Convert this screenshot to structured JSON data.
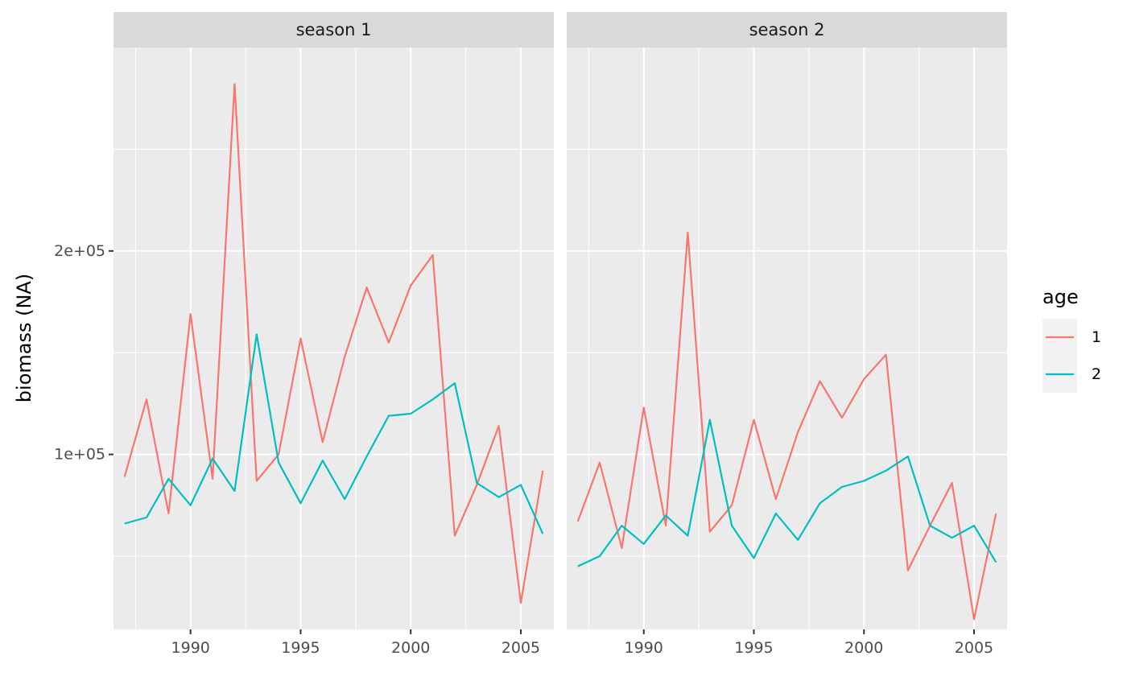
{
  "chart_data": {
    "type": "line",
    "ylabel": "biomass (NA)",
    "xlabel": "",
    "x": [
      1987,
      1988,
      1989,
      1990,
      1991,
      1992,
      1993,
      1994,
      1995,
      1996,
      1997,
      1998,
      1999,
      2000,
      2001,
      2002,
      2003,
      2004,
      2005,
      2006
    ],
    "xlim": [
      1986.5,
      2006.5
    ],
    "ylim": [
      14000,
      300000
    ],
    "x_ticks": [
      1990,
      1995,
      2000,
      2005
    ],
    "x_tick_labels": [
      "1990",
      "1995",
      "2000",
      "2005"
    ],
    "y_ticks": [
      100000,
      200000
    ],
    "y_tick_labels": [
      "1e+05",
      "2e+05"
    ],
    "legend": {
      "title": "age",
      "position": "right",
      "entries": [
        {
          "label": "1",
          "color": "#F8766D"
        },
        {
          "label": "2",
          "color": "#00BFC4"
        }
      ]
    },
    "panels": [
      {
        "strip": "season 1",
        "series": [
          {
            "name": "1",
            "color": "#F8766D",
            "values": [
              89000,
              127000,
              71000,
              169000,
              88000,
              282000,
              87000,
              100000,
              157000,
              106000,
              148000,
              182000,
              155000,
              183000,
              198000,
              60000,
              85000,
              114000,
              27000,
              92000
            ]
          },
          {
            "name": "2",
            "color": "#00BFC4",
            "values": [
              66000,
              69000,
              88000,
              75000,
              98000,
              82000,
              159000,
              96000,
              76000,
              97000,
              78000,
              99000,
              119000,
              120000,
              127000,
              135000,
              86000,
              79000,
              85000,
              61000
            ]
          }
        ]
      },
      {
        "strip": "season 2",
        "series": [
          {
            "name": "1",
            "color": "#F8766D",
            "values": [
              67000,
              96000,
              54000,
              123000,
              65000,
              209000,
              62000,
              75000,
              117000,
              78000,
              111000,
              136000,
              118000,
              137000,
              149000,
              43000,
              65000,
              86000,
              19000,
              71000
            ]
          },
          {
            "name": "2",
            "color": "#00BFC4",
            "values": [
              45000,
              50000,
              65000,
              56000,
              70000,
              60000,
              117000,
              65000,
              49000,
              71000,
              58000,
              76000,
              84000,
              87000,
              92000,
              99000,
              65000,
              59000,
              65000,
              47000
            ]
          }
        ]
      }
    ]
  }
}
